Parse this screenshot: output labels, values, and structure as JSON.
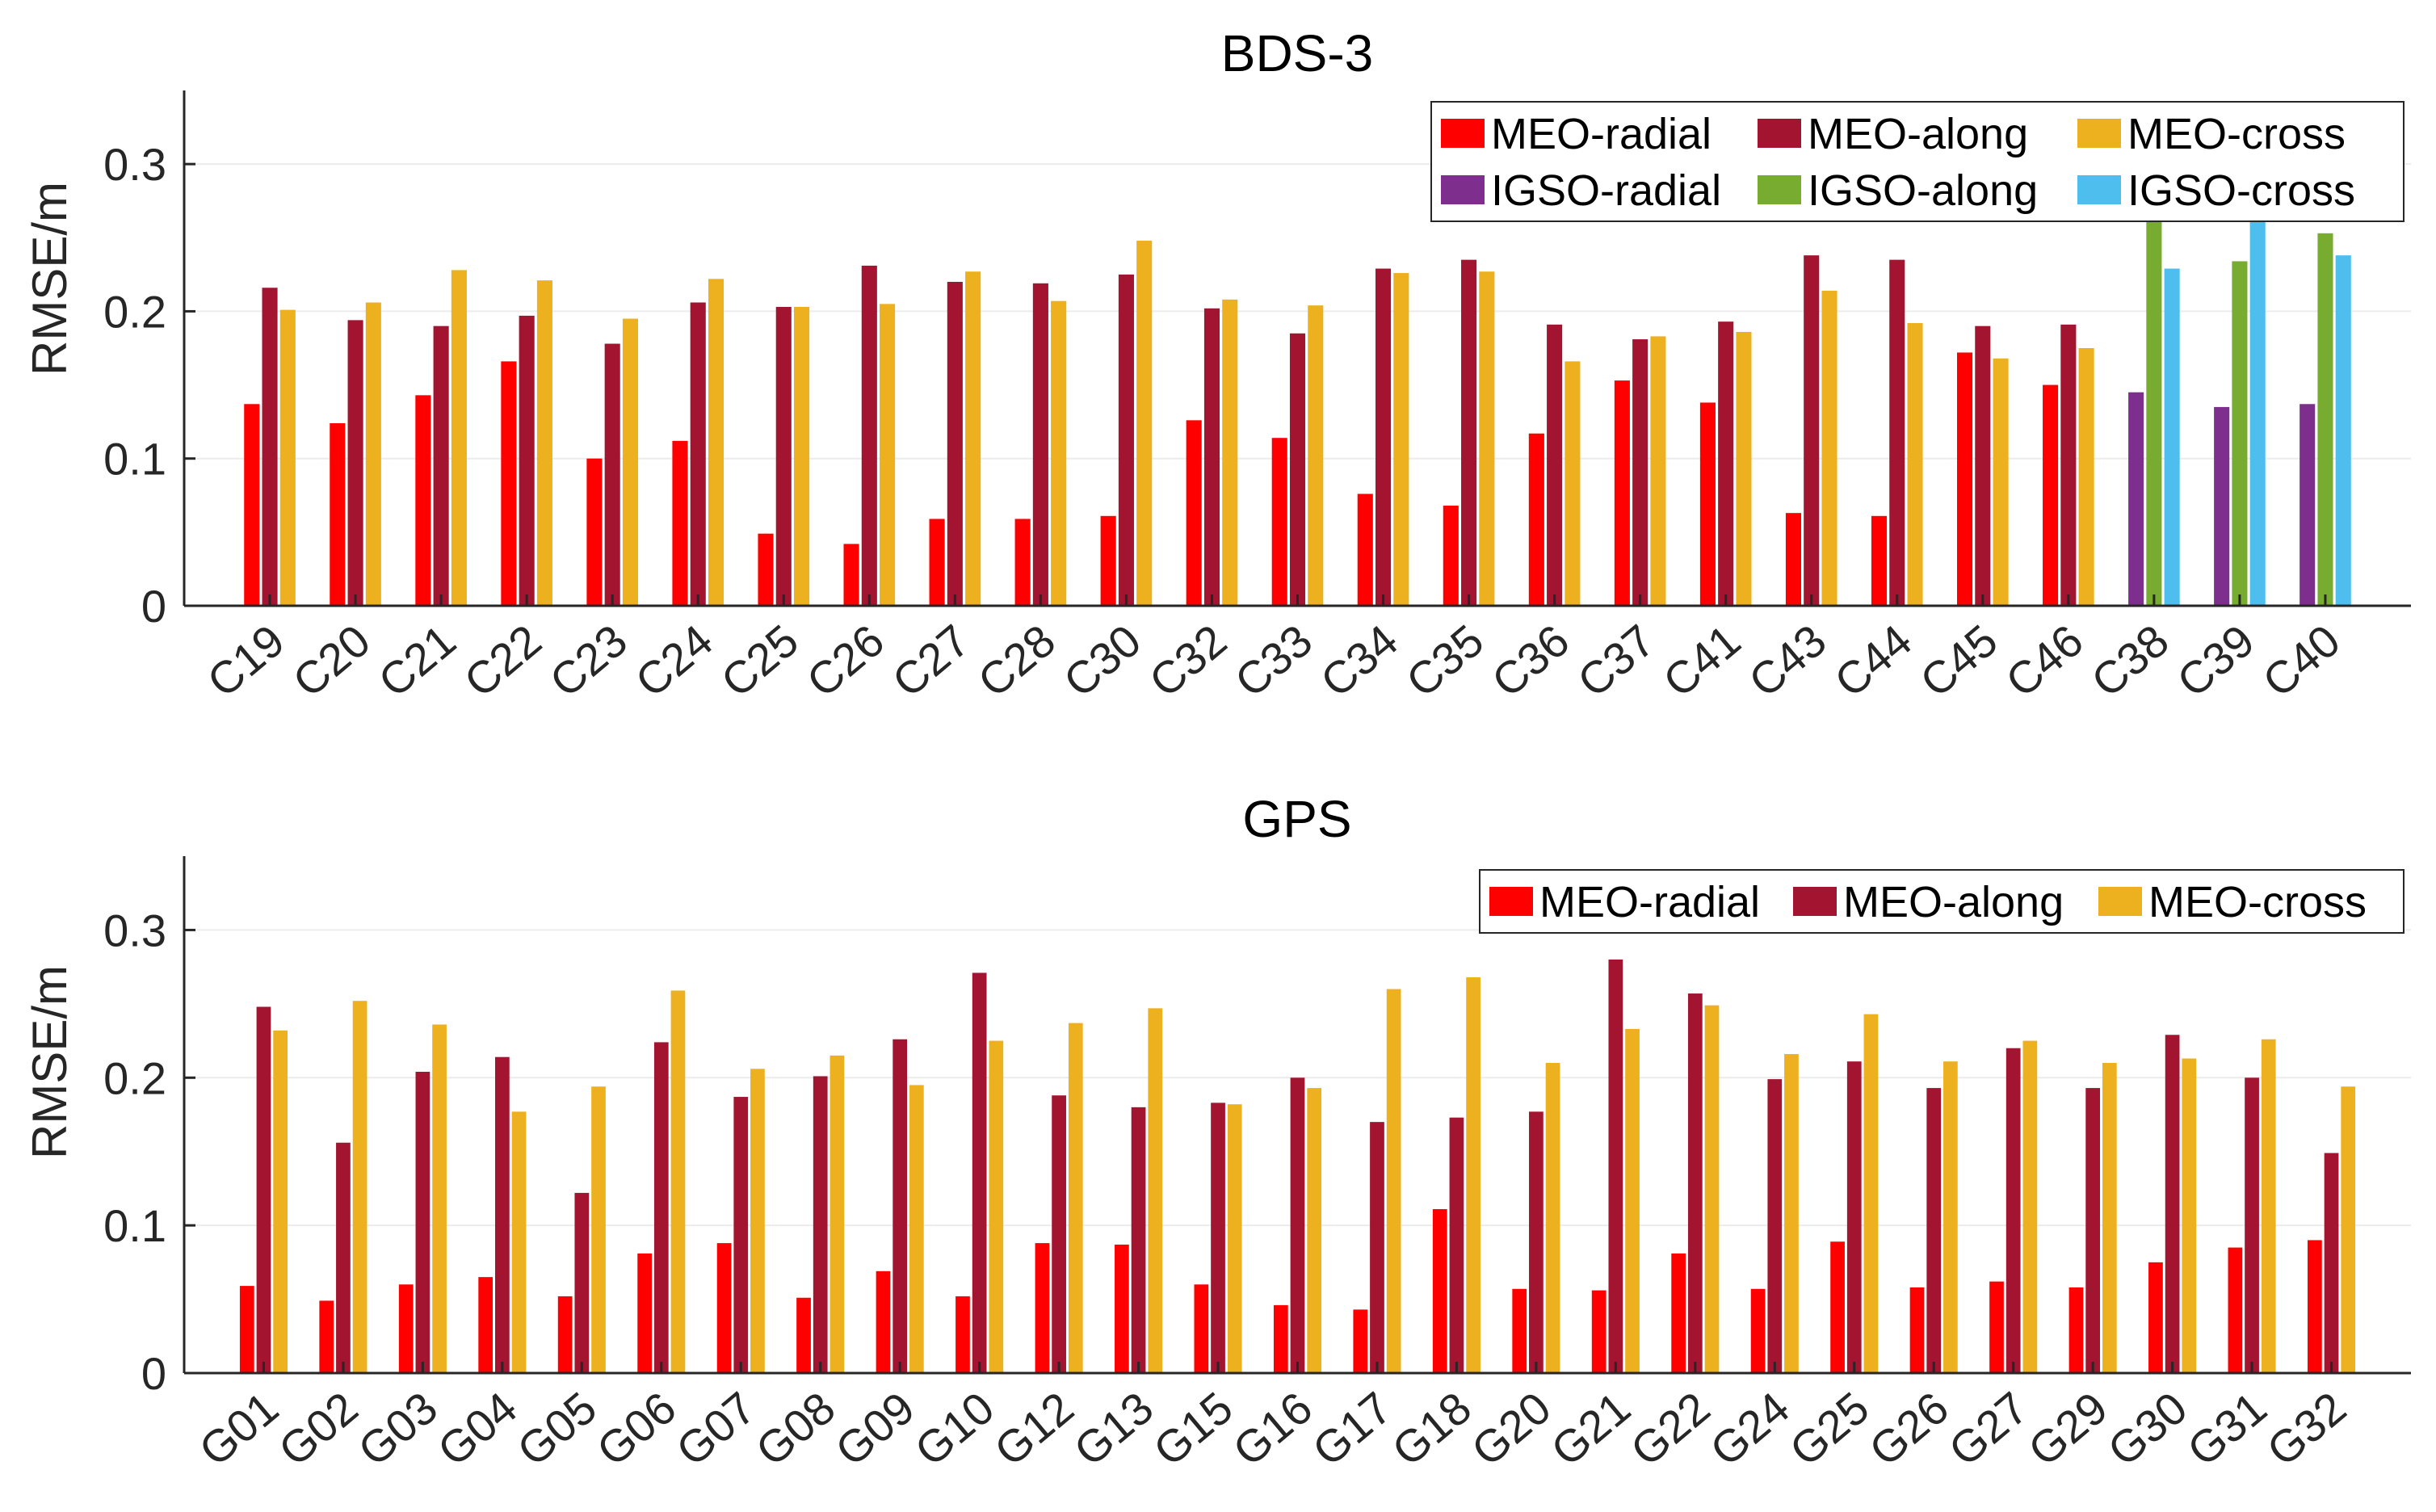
{
  "chart_data": [
    {
      "type": "bar",
      "title": "BDS-3",
      "xlabel": "",
      "ylabel": "RMSE/m",
      "ylim": [
        0,
        0.35
      ],
      "yticks": [
        0,
        0.1,
        0.2,
        0.3
      ],
      "ytick_labels": [
        "0",
        "0.1",
        "0.2",
        "0.3"
      ],
      "grid": true,
      "legend_position": "top-right",
      "categories": [
        "C19",
        "C20",
        "C21",
        "C22",
        "C23",
        "C24",
        "C25",
        "C26",
        "C27",
        "C28",
        "C30",
        "C32",
        "C33",
        "C34",
        "C35",
        "C36",
        "C37",
        "C41",
        "C43",
        "C44",
        "C45",
        "C46",
        "C38",
        "C39",
        "C40"
      ],
      "series": [
        {
          "name": "MEO-radial",
          "color": "#ff0000",
          "values": [
            0.137,
            0.124,
            0.143,
            0.166,
            0.1,
            0.112,
            0.049,
            0.042,
            0.059,
            0.059,
            0.061,
            0.126,
            0.114,
            0.076,
            0.068,
            0.117,
            0.153,
            0.138,
            0.063,
            0.061,
            0.172,
            0.15,
            null,
            null,
            null
          ]
        },
        {
          "name": "MEO-along",
          "color": "#a2142f",
          "values": [
            0.216,
            0.194,
            0.19,
            0.197,
            0.178,
            0.206,
            0.203,
            0.231,
            0.22,
            0.219,
            0.225,
            0.202,
            0.185,
            0.229,
            0.235,
            0.191,
            0.181,
            0.193,
            0.238,
            0.235,
            0.19,
            0.191,
            null,
            null,
            null
          ]
        },
        {
          "name": "MEO-cross",
          "color": "#edb120",
          "values": [
            0.201,
            0.206,
            0.228,
            0.221,
            0.195,
            0.222,
            0.203,
            0.205,
            0.227,
            0.207,
            0.248,
            0.208,
            0.204,
            0.226,
            0.227,
            0.166,
            0.183,
            0.186,
            0.214,
            0.192,
            0.168,
            0.175,
            null,
            null,
            null
          ]
        },
        {
          "name": "IGSO-radial",
          "color": "#7e2f8e",
          "values": [
            null,
            null,
            null,
            null,
            null,
            null,
            null,
            null,
            null,
            null,
            null,
            null,
            null,
            null,
            null,
            null,
            null,
            null,
            null,
            null,
            null,
            null,
            0.145,
            0.135,
            0.137
          ]
        },
        {
          "name": "IGSO-along",
          "color": "#77ac30",
          "values": [
            null,
            null,
            null,
            null,
            null,
            null,
            null,
            null,
            null,
            null,
            null,
            null,
            null,
            null,
            null,
            null,
            null,
            null,
            null,
            null,
            null,
            null,
            0.268,
            0.234,
            0.253
          ]
        },
        {
          "name": "IGSO-cross",
          "color": "#4dbeee",
          "values": [
            null,
            null,
            null,
            null,
            null,
            null,
            null,
            null,
            null,
            null,
            null,
            null,
            null,
            null,
            null,
            null,
            null,
            null,
            null,
            null,
            null,
            null,
            0.229,
            0.261,
            0.238
          ]
        }
      ]
    },
    {
      "type": "bar",
      "title": "GPS",
      "xlabel": "",
      "ylabel": "RMSE/m",
      "ylim": [
        0,
        0.35
      ],
      "yticks": [
        0,
        0.1,
        0.2,
        0.3
      ],
      "ytick_labels": [
        "0",
        "0.1",
        "0.2",
        "0.3"
      ],
      "grid": true,
      "legend_position": "top-right",
      "categories": [
        "G01",
        "G02",
        "G03",
        "G04",
        "G05",
        "G06",
        "G07",
        "G08",
        "G09",
        "G10",
        "G12",
        "G13",
        "G15",
        "G16",
        "G17",
        "G18",
        "G20",
        "G21",
        "G22",
        "G24",
        "G25",
        "G26",
        "G27",
        "G29",
        "G30",
        "G31",
        "G32"
      ],
      "series": [
        {
          "name": "MEO-radial",
          "color": "#ff0000",
          "values": [
            0.059,
            0.049,
            0.06,
            0.065,
            0.052,
            0.081,
            0.088,
            0.051,
            0.069,
            0.052,
            0.088,
            0.087,
            0.06,
            0.046,
            0.043,
            0.111,
            0.057,
            0.056,
            0.081,
            0.057,
            0.089,
            0.058,
            0.062,
            0.058,
            0.075,
            0.085,
            0.09
          ]
        },
        {
          "name": "MEO-along",
          "color": "#a2142f",
          "values": [
            0.248,
            0.156,
            0.204,
            0.214,
            0.122,
            0.224,
            0.187,
            0.201,
            0.226,
            0.271,
            0.188,
            0.18,
            0.183,
            0.2,
            0.17,
            0.173,
            0.177,
            0.28,
            0.257,
            0.199,
            0.211,
            0.193,
            0.22,
            0.193,
            0.229,
            0.2,
            0.149
          ]
        },
        {
          "name": "MEO-cross",
          "color": "#edb120",
          "values": [
            0.232,
            0.252,
            0.236,
            0.177,
            0.194,
            0.259,
            0.206,
            0.215,
            0.195,
            0.225,
            0.237,
            0.247,
            0.182,
            0.193,
            0.26,
            0.268,
            0.21,
            0.233,
            0.249,
            0.216,
            0.243,
            0.211,
            0.225,
            0.21,
            0.213,
            0.226,
            0.194
          ]
        }
      ]
    }
  ]
}
